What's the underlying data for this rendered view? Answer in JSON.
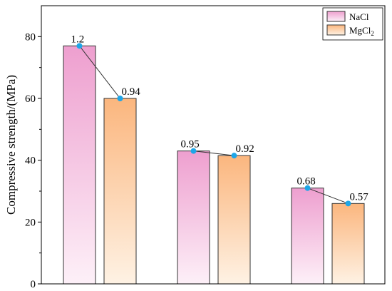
{
  "chart_data": {
    "type": "bar",
    "ylabel": "Compressive strength/(MPa)",
    "xlabel": "",
    "ylim": [
      0,
      90
    ],
    "yticks": [
      0,
      20,
      40,
      60,
      80
    ],
    "grid": false,
    "legend_position": "top-right",
    "group_count": 3,
    "series": [
      {
        "name": "NaCl",
        "name_base": "NaCl",
        "name_sub": "",
        "values": [
          77,
          43,
          31
        ],
        "point_labels": [
          "1.2",
          "0.95",
          "0.68"
        ],
        "gradient_top": "#ee9fcf",
        "gradient_bottom": "#fdf0f8"
      },
      {
        "name": "MgCl2",
        "name_base": "MgCl",
        "name_sub": "2",
        "values": [
          60,
          41.5,
          26
        ],
        "point_labels": [
          "0.94",
          "0.92",
          "0.57"
        ],
        "gradient_top": "#fbb67e",
        "gradient_bottom": "#fef2e4"
      }
    ],
    "marker_color": "#1ea6e8",
    "connector_color": "#333333",
    "bar_edge_color": "#333333"
  }
}
